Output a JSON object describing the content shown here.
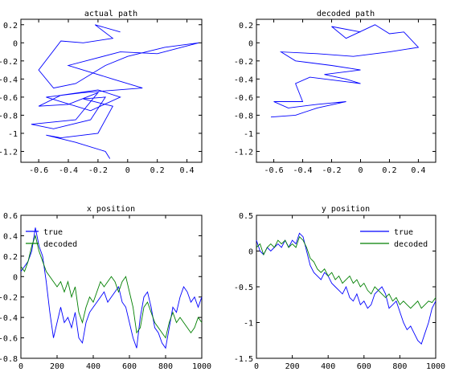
{
  "chart_data": [
    {
      "type": "line",
      "title": "actual path",
      "xlabel": "",
      "ylabel": "",
      "xlim": [
        -0.72,
        0.5
      ],
      "ylim": [
        -1.32,
        0.26
      ],
      "xticks": [
        -0.6,
        -0.4,
        -0.2,
        0,
        0.2,
        0.4
      ],
      "yticks": [
        0.2,
        0,
        -0.2,
        -0.4,
        -0.6,
        -0.8,
        -1,
        -1.2
      ],
      "xtick_labels": [
        "-0.6",
        "-0.4",
        "-0.2",
        "0",
        "0.2",
        "0.4"
      ],
      "ytick_labels": [
        "0.2",
        "0",
        "-0.2",
        "-0.4",
        "-0.6",
        "-0.8",
        "-1",
        "-1.2"
      ],
      "series": [
        {
          "color": "#0000ff",
          "x": [
            -0.05,
            -0.22,
            -0.1,
            -0.3,
            -0.45,
            -0.6,
            -0.5,
            -0.35,
            -0.15,
            0.0,
            0.25,
            0.48,
            0.2,
            -0.05,
            -0.4,
            -0.1,
            0.1,
            -0.3,
            -0.55,
            -0.25,
            -0.05,
            -0.2,
            -0.45,
            -0.6,
            -0.4,
            -0.2,
            -0.35,
            -0.65,
            -0.5,
            -0.25,
            -0.15,
            -0.3,
            -0.1,
            -0.2,
            -0.45,
            -0.55,
            -0.35,
            -0.15,
            -0.12
          ],
          "y": [
            0.12,
            0.2,
            0.05,
            0.0,
            0.02,
            -0.3,
            -0.5,
            -0.45,
            -0.25,
            -0.15,
            -0.05,
            0.0,
            -0.12,
            -0.1,
            -0.25,
            -0.4,
            -0.5,
            -0.55,
            -0.6,
            -0.75,
            -0.6,
            -0.52,
            -0.58,
            -0.7,
            -0.68,
            -0.55,
            -0.85,
            -0.9,
            -0.95,
            -0.85,
            -0.6,
            -0.62,
            -0.7,
            -1.0,
            -1.05,
            -1.02,
            -1.1,
            -1.2,
            -1.28
          ]
        }
      ]
    },
    {
      "type": "line",
      "title": "decoded path",
      "xlabel": "",
      "ylabel": "",
      "xlim": [
        -0.72,
        0.52
      ],
      "ylim": [
        -1.32,
        0.26
      ],
      "xticks": [
        -0.6,
        -0.4,
        -0.2,
        0,
        0.2,
        0.4
      ],
      "yticks": [
        0.2,
        0,
        -0.2,
        -0.4,
        -0.6,
        -0.8,
        -1,
        -1.2
      ],
      "xtick_labels": [
        "-0.6",
        "-0.4",
        "-0.2",
        "0",
        "0.2",
        "0.4"
      ],
      "ytick_labels": [
        "0.2",
        "0",
        "-0.2",
        "-0.4",
        "-0.6",
        "-0.8",
        "-1",
        "-1.2"
      ],
      "series": [
        {
          "color": "#0000ff",
          "x": [
            0.0,
            -0.2,
            -0.1,
            0.1,
            0.2,
            0.3,
            0.4,
            0.2,
            -0.05,
            -0.3,
            -0.55,
            -0.45,
            -0.2,
            0.0,
            -0.25,
            -0.1,
            0.0,
            -0.15,
            -0.35,
            -0.45,
            -0.4,
            -0.6,
            -0.5,
            -0.3,
            -0.1,
            -0.3,
            -0.45,
            -0.62
          ],
          "y": [
            0.12,
            0.18,
            0.05,
            0.2,
            0.1,
            0.12,
            -0.05,
            -0.1,
            -0.15,
            -0.12,
            -0.1,
            -0.2,
            -0.25,
            -0.3,
            -0.35,
            -0.4,
            -0.45,
            -0.42,
            -0.38,
            -0.45,
            -0.65,
            -0.65,
            -0.72,
            -0.68,
            -0.65,
            -0.72,
            -0.8,
            -0.82
          ]
        }
      ]
    },
    {
      "type": "line",
      "title": "x position",
      "xlabel": "",
      "ylabel": "",
      "xlim": [
        0,
        1000
      ],
      "ylim": [
        -0.8,
        0.6
      ],
      "xticks": [
        0,
        200,
        400,
        600,
        800,
        1000
      ],
      "yticks": [
        0.6,
        0.4,
        0.2,
        0,
        -0.2,
        -0.4,
        -0.6,
        -0.8
      ],
      "xtick_labels": [
        "0",
        "200",
        "400",
        "600",
        "800",
        "1000"
      ],
      "ytick_labels": [
        "0.6",
        "0.4",
        "0.2",
        "0",
        "-0.2",
        "-0.4",
        "-0.6",
        "-0.8"
      ],
      "legend": "top-left",
      "series": [
        {
          "name": "true",
          "color": "#0000ff",
          "x": [
            0,
            20,
            40,
            60,
            80,
            100,
            120,
            140,
            160,
            180,
            200,
            220,
            240,
            260,
            280,
            300,
            320,
            340,
            360,
            380,
            400,
            420,
            440,
            460,
            480,
            500,
            520,
            540,
            560,
            580,
            600,
            620,
            640,
            660,
            680,
            700,
            720,
            740,
            760,
            780,
            800,
            820,
            840,
            860,
            880,
            900,
            920,
            940,
            960,
            980,
            1000
          ],
          "y": [
            0.05,
            0.1,
            0.15,
            0.25,
            0.48,
            0.3,
            0.2,
            -0.05,
            -0.35,
            -0.6,
            -0.45,
            -0.3,
            -0.45,
            -0.4,
            -0.5,
            -0.35,
            -0.6,
            -0.65,
            -0.45,
            -0.35,
            -0.3,
            -0.25,
            -0.2,
            -0.15,
            -0.25,
            -0.2,
            -0.15,
            -0.1,
            -0.25,
            -0.3,
            -0.45,
            -0.6,
            -0.7,
            -0.4,
            -0.2,
            -0.15,
            -0.3,
            -0.5,
            -0.55,
            -0.65,
            -0.7,
            -0.5,
            -0.3,
            -0.35,
            -0.2,
            -0.1,
            -0.15,
            -0.25,
            -0.2,
            -0.3,
            -0.2
          ]
        },
        {
          "name": "decoded",
          "color": "#007f00",
          "x": [
            0,
            20,
            40,
            60,
            80,
            100,
            120,
            140,
            160,
            180,
            200,
            220,
            240,
            260,
            280,
            300,
            320,
            340,
            360,
            380,
            400,
            420,
            440,
            460,
            480,
            500,
            520,
            540,
            560,
            580,
            600,
            620,
            640,
            660,
            680,
            700,
            720,
            740,
            760,
            780,
            800,
            820,
            840,
            860,
            880,
            900,
            920,
            940,
            960,
            980,
            1000
          ],
          "y": [
            0.1,
            0.05,
            0.15,
            0.3,
            0.4,
            0.25,
            0.15,
            0.05,
            0.0,
            -0.05,
            -0.1,
            -0.05,
            -0.15,
            -0.05,
            -0.2,
            -0.1,
            -0.35,
            -0.45,
            -0.3,
            -0.2,
            -0.25,
            -0.15,
            -0.05,
            -0.1,
            -0.05,
            0.0,
            -0.05,
            -0.15,
            -0.05,
            0.0,
            -0.15,
            -0.3,
            -0.55,
            -0.5,
            -0.3,
            -0.25,
            -0.35,
            -0.45,
            -0.5,
            -0.55,
            -0.6,
            -0.45,
            -0.35,
            -0.45,
            -0.4,
            -0.45,
            -0.5,
            -0.55,
            -0.5,
            -0.4,
            -0.45
          ]
        }
      ]
    },
    {
      "type": "line",
      "title": "y position",
      "xlabel": "",
      "ylabel": "",
      "xlim": [
        0,
        1000
      ],
      "ylim": [
        -1.5,
        0.5
      ],
      "xticks": [
        0,
        200,
        400,
        600,
        800,
        1000
      ],
      "yticks": [
        0.5,
        0,
        -0.5,
        -1,
        -1.5
      ],
      "xtick_labels": [
        "0",
        "200",
        "400",
        "600",
        "800",
        "1000"
      ],
      "ytick_labels": [
        "0.5",
        "0",
        "-0.5",
        "-1",
        "-1.5"
      ],
      "legend": "top-right",
      "series": [
        {
          "name": "true",
          "color": "#0000ff",
          "x": [
            0,
            20,
            40,
            60,
            80,
            100,
            120,
            140,
            160,
            180,
            200,
            220,
            240,
            260,
            280,
            300,
            320,
            340,
            360,
            380,
            400,
            420,
            440,
            460,
            480,
            500,
            520,
            540,
            560,
            580,
            600,
            620,
            640,
            660,
            680,
            700,
            720,
            740,
            760,
            780,
            800,
            820,
            840,
            860,
            880,
            900,
            920,
            940,
            960,
            980,
            1000
          ],
          "y": [
            0.15,
            0.0,
            -0.05,
            0.05,
            0.0,
            0.05,
            0.1,
            0.05,
            0.15,
            0.05,
            0.15,
            0.1,
            0.25,
            0.2,
            0.0,
            -0.2,
            -0.3,
            -0.35,
            -0.4,
            -0.3,
            -0.35,
            -0.45,
            -0.5,
            -0.55,
            -0.6,
            -0.5,
            -0.65,
            -0.7,
            -0.6,
            -0.75,
            -0.7,
            -0.8,
            -0.75,
            -0.6,
            -0.55,
            -0.5,
            -0.6,
            -0.8,
            -0.75,
            -0.7,
            -0.85,
            -1.0,
            -1.1,
            -1.05,
            -1.15,
            -1.25,
            -1.3,
            -1.15,
            -1.0,
            -0.8,
            -0.7
          ]
        },
        {
          "name": "decoded",
          "color": "#007f00",
          "x": [
            0,
            20,
            40,
            60,
            80,
            100,
            120,
            140,
            160,
            180,
            200,
            220,
            240,
            260,
            280,
            300,
            320,
            340,
            360,
            380,
            400,
            420,
            440,
            460,
            480,
            500,
            520,
            540,
            560,
            580,
            600,
            620,
            640,
            660,
            680,
            700,
            720,
            740,
            760,
            780,
            800,
            820,
            840,
            860,
            880,
            900,
            920,
            940,
            960,
            980,
            1000
          ],
          "y": [
            0.05,
            0.1,
            -0.05,
            0.05,
            0.1,
            0.05,
            0.15,
            0.1,
            0.15,
            0.05,
            0.1,
            0.05,
            0.2,
            0.15,
            0.05,
            -0.1,
            -0.15,
            -0.25,
            -0.3,
            -0.25,
            -0.35,
            -0.3,
            -0.4,
            -0.35,
            -0.45,
            -0.4,
            -0.35,
            -0.45,
            -0.4,
            -0.5,
            -0.45,
            -0.55,
            -0.6,
            -0.5,
            -0.55,
            -0.6,
            -0.65,
            -0.6,
            -0.7,
            -0.65,
            -0.75,
            -0.7,
            -0.75,
            -0.8,
            -0.75,
            -0.7,
            -0.8,
            -0.75,
            -0.7,
            -0.72,
            -0.65
          ]
        }
      ]
    }
  ]
}
